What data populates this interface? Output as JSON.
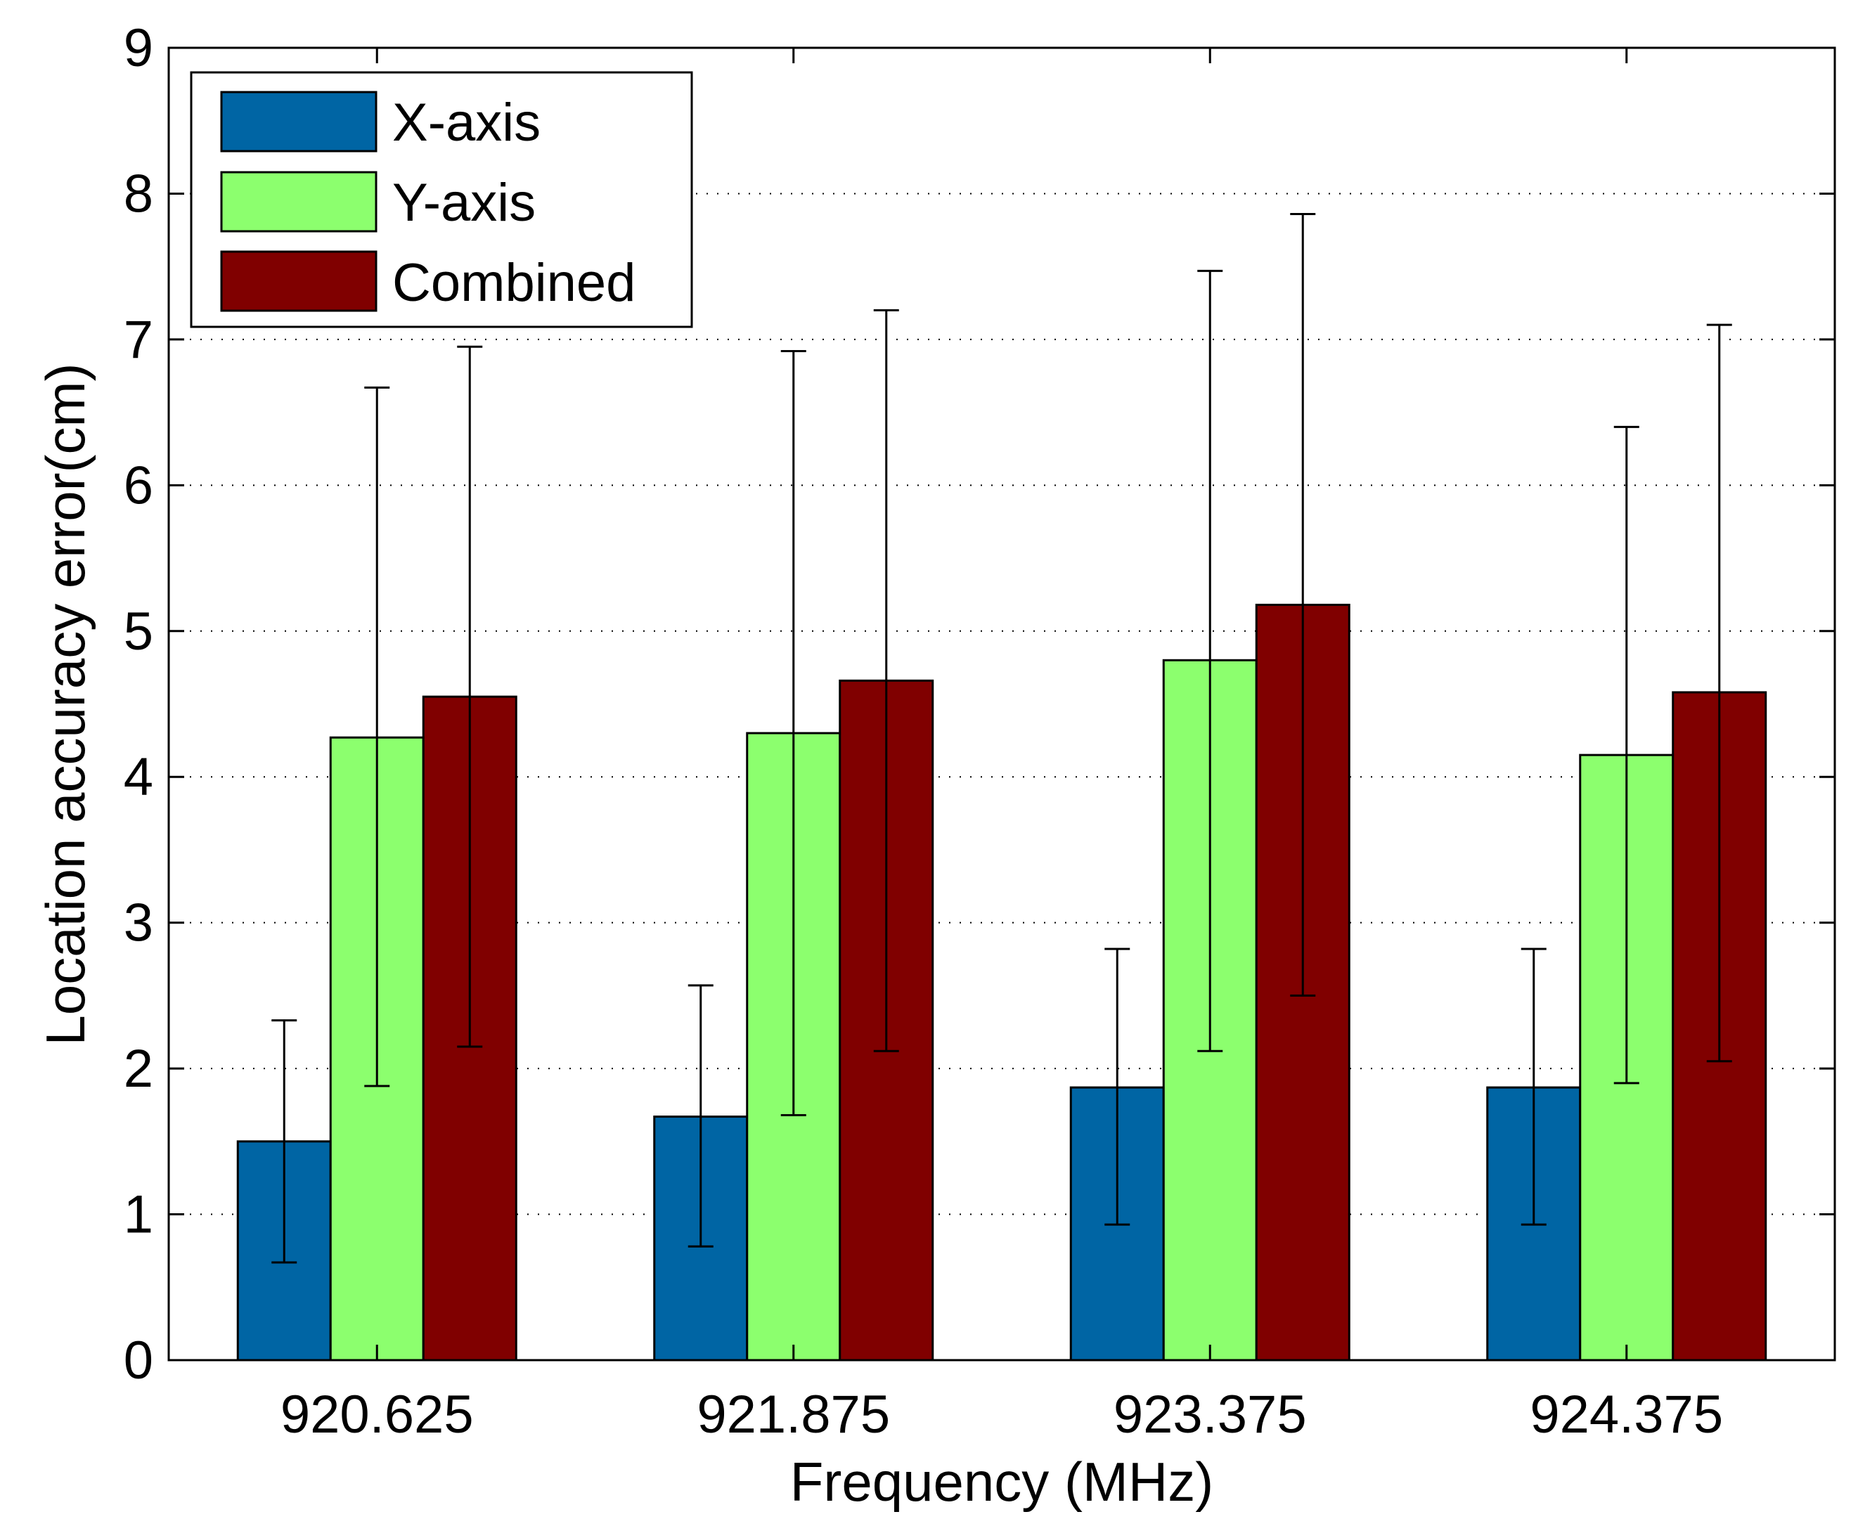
{
  "chart_data": {
    "type": "bar",
    "title": "",
    "xlabel": "Frequency (MHz)",
    "ylabel": "Location accuracy error(cm)",
    "categories": [
      "920.625",
      "921.875",
      "923.375",
      "924.375"
    ],
    "ylim": [
      0,
      9
    ],
    "yticks": [
      0,
      1,
      2,
      3,
      4,
      5,
      6,
      7,
      8,
      9
    ],
    "ytick_labels": [
      "0",
      "1",
      "2",
      "3",
      "4",
      "5",
      "6",
      "7",
      "8",
      "9"
    ],
    "grid": "horizontal dotted",
    "legend_position": "top-left",
    "error_bars": true,
    "series": [
      {
        "name": "X-axis",
        "color": "#0065A4",
        "values": [
          1.5,
          1.67,
          1.87,
          1.87
        ],
        "err_low": [
          0.67,
          0.78,
          0.93,
          0.93
        ],
        "err_high": [
          2.33,
          2.57,
          2.82,
          2.82
        ]
      },
      {
        "name": "Y-axis",
        "color": "#8CFF6E",
        "values": [
          4.27,
          4.3,
          4.8,
          4.15
        ],
        "err_low": [
          1.88,
          1.68,
          2.12,
          1.9
        ],
        "err_high": [
          6.67,
          6.92,
          7.47,
          6.4
        ]
      },
      {
        "name": "Combined",
        "color": "#800000",
        "values": [
          4.55,
          4.66,
          5.18,
          4.58
        ],
        "err_low": [
          2.15,
          2.12,
          2.5,
          2.05
        ],
        "err_high": [
          6.95,
          7.2,
          7.86,
          7.1
        ]
      }
    ]
  }
}
